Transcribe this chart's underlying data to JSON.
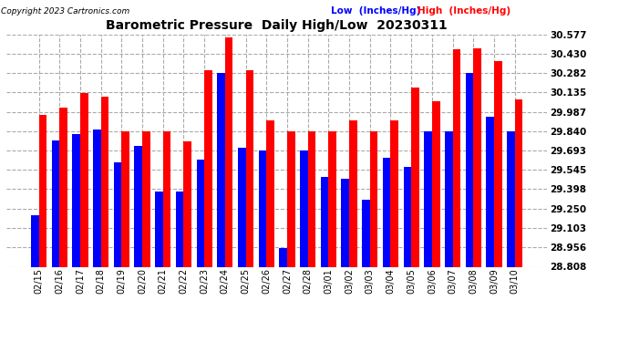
{
  "title": "Barometric Pressure  Daily High/Low  20230311",
  "copyright": "Copyright 2023 Cartronics.com",
  "legend_low": "Low  (Inches/Hg)",
  "legend_high": "High  (Inches/Hg)",
  "dates": [
    "02/15",
    "02/16",
    "02/17",
    "02/18",
    "02/19",
    "02/20",
    "02/21",
    "02/22",
    "02/23",
    "02/24",
    "02/25",
    "02/26",
    "02/27",
    "02/28",
    "03/01",
    "03/02",
    "03/03",
    "03/04",
    "03/05",
    "03/06",
    "03/07",
    "03/08",
    "03/09",
    "03/10"
  ],
  "high": [
    29.96,
    30.02,
    30.13,
    30.1,
    29.84,
    29.84,
    29.84,
    29.76,
    30.3,
    30.55,
    30.3,
    29.92,
    29.84,
    29.84,
    29.84,
    29.92,
    29.84,
    29.92,
    30.17,
    30.07,
    30.46,
    30.47,
    30.37,
    30.08
  ],
  "low": [
    29.2,
    29.77,
    29.82,
    29.85,
    29.6,
    29.73,
    29.38,
    29.38,
    29.62,
    30.28,
    29.71,
    29.69,
    28.95,
    29.69,
    29.49,
    29.48,
    29.32,
    29.64,
    29.57,
    29.84,
    29.84,
    30.28,
    29.95,
    29.84
  ],
  "ylim_min": 28.808,
  "ylim_max": 30.577,
  "yticks": [
    28.808,
    28.956,
    29.103,
    29.25,
    29.398,
    29.545,
    29.693,
    29.84,
    29.987,
    30.135,
    30.282,
    30.43,
    30.577
  ],
  "bar_width": 0.38,
  "high_color": "#ff0000",
  "low_color": "#0000ff",
  "bg_color": "#ffffff",
  "grid_color": "#aaaaaa",
  "title_color": "#000000",
  "copyright_color": "#000000",
  "tick_label_color": "#000000"
}
